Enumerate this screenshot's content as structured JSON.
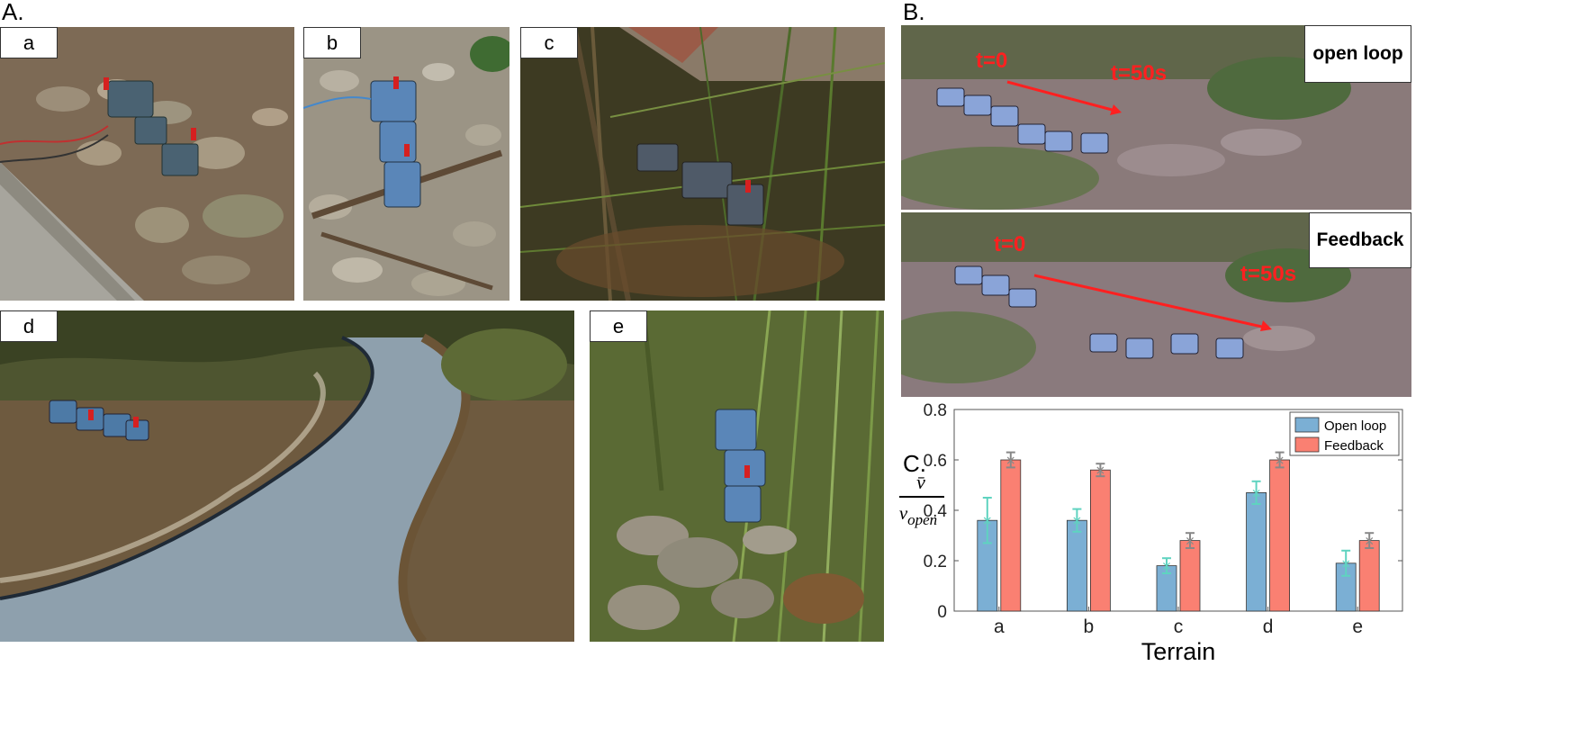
{
  "panels": {
    "A": "A.",
    "B": "B.",
    "C": "C."
  },
  "photos": {
    "a": "a",
    "b": "b",
    "c": "c",
    "d": "d",
    "e": "e"
  },
  "panel_b": {
    "top_label": "open loop",
    "bottom_label": "Feedback",
    "t0": "t=0",
    "t50": "t=50s"
  },
  "colors": {
    "open_loop": "#7bafd4",
    "feedback": "#fa8072",
    "arrow": "#ff2020"
  },
  "chart_data": {
    "type": "bar",
    "categories": [
      "a",
      "b",
      "c",
      "d",
      "e"
    ],
    "series": [
      {
        "name": "Open loop",
        "values": [
          0.36,
          0.36,
          0.18,
          0.47,
          0.19
        ],
        "errors": [
          0.09,
          0.045,
          0.03,
          0.045,
          0.05
        ]
      },
      {
        "name": "Feedback",
        "values": [
          0.6,
          0.56,
          0.28,
          0.6,
          0.28
        ],
        "errors": [
          0.03,
          0.025,
          0.03,
          0.03,
          0.03
        ]
      }
    ],
    "xlabel": "Terrain",
    "ylabel_numerator": "v̄",
    "ylabel_denominator": "v",
    "ylabel_subscript": "open",
    "ylim": [
      0,
      0.8
    ],
    "yticks": [
      "0",
      "0.2",
      "0.4",
      "0.6",
      "0.8"
    ],
    "legend_position": "top-right",
    "grid": false
  }
}
